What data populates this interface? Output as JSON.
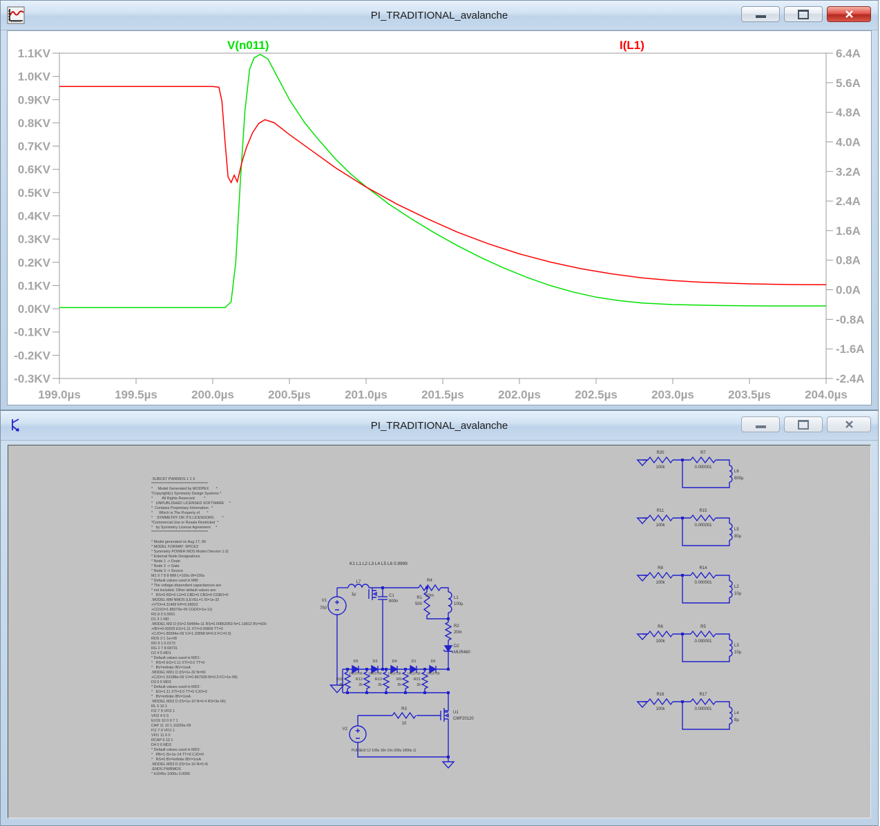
{
  "plot_window": {
    "title": "PI_TRADITIONAL_avalanche"
  },
  "schematic_window": {
    "title": "PI_TRADITIONAL_avalanche"
  },
  "colors": {
    "trace_green": "#00e100",
    "trace_red": "#ff0000",
    "wire_blue": "#2121cc",
    "canvas_grey": "#c2c2c2",
    "axis_text": "#a4a4a4",
    "frame_grey": "#9a9a9a"
  },
  "chart_data": {
    "type": "line",
    "title": "",
    "grid": false,
    "legend_position": "top-inside",
    "x_axis": {
      "unit": "µs",
      "lim": [
        199.0,
        204.0
      ],
      "ticks": [
        [
          199.0,
          "199.0µs"
        ],
        [
          199.5,
          "199.5µs"
        ],
        [
          200.0,
          "200.0µs"
        ],
        [
          200.5,
          "200.5µs"
        ],
        [
          201.0,
          "201.0µs"
        ],
        [
          201.5,
          "201.5µs"
        ],
        [
          202.0,
          "202.0µs"
        ],
        [
          202.5,
          "202.5µs"
        ],
        [
          203.0,
          "203.0µs"
        ],
        [
          203.5,
          "203.5µs"
        ],
        [
          204.0,
          "204.0µs"
        ]
      ]
    },
    "left_axis": {
      "unit": "KV",
      "lim": [
        -0.3,
        1.1
      ],
      "ticks": [
        [
          1.1,
          "1.1KV"
        ],
        [
          1.0,
          "1.0KV"
        ],
        [
          0.9,
          "0.9KV"
        ],
        [
          0.8,
          "0.8KV"
        ],
        [
          0.7,
          "0.7KV"
        ],
        [
          0.6,
          "0.6KV"
        ],
        [
          0.5,
          "0.5KV"
        ],
        [
          0.4,
          "0.4KV"
        ],
        [
          0.3,
          "0.3KV"
        ],
        [
          0.2,
          "0.2KV"
        ],
        [
          0.1,
          "0.1KV"
        ],
        [
          0.0,
          "0.0KV"
        ],
        [
          -0.1,
          "-0.1KV"
        ],
        [
          -0.2,
          "-0.2KV"
        ],
        [
          -0.3,
          "-0.3KV"
        ]
      ]
    },
    "right_axis": {
      "unit": "A",
      "lim": [
        -2.4,
        6.4
      ],
      "ticks": [
        [
          6.4,
          "6.4A"
        ],
        [
          5.6,
          "5.6A"
        ],
        [
          4.8,
          "4.8A"
        ],
        [
          4.0,
          "4.0A"
        ],
        [
          3.2,
          "3.2A"
        ],
        [
          2.4,
          "2.4A"
        ],
        [
          1.6,
          "1.6A"
        ],
        [
          0.8,
          "0.8A"
        ],
        [
          0.0,
          "0.0A"
        ],
        [
          -0.8,
          "-0.8A"
        ],
        [
          -1.6,
          "-1.6A"
        ],
        [
          -2.4,
          "-2.4A"
        ]
      ]
    },
    "series": [
      {
        "name": "V(n011)",
        "color": "#00e100",
        "axis": "left",
        "points": [
          [
            199.0,
            0.005
          ],
          [
            199.5,
            0.005
          ],
          [
            200.0,
            0.005
          ],
          [
            200.08,
            0.005
          ],
          [
            200.12,
            0.03
          ],
          [
            200.15,
            0.2
          ],
          [
            200.18,
            0.55
          ],
          [
            200.21,
            0.85
          ],
          [
            200.24,
            1.03
          ],
          [
            200.27,
            1.08
          ],
          [
            200.31,
            1.095
          ],
          [
            200.36,
            1.075
          ],
          [
            200.42,
            1.0
          ],
          [
            200.5,
            0.9
          ],
          [
            200.6,
            0.8
          ],
          [
            200.7,
            0.72
          ],
          [
            200.8,
            0.645
          ],
          [
            200.9,
            0.58
          ],
          [
            201.0,
            0.525
          ],
          [
            201.15,
            0.45
          ],
          [
            201.3,
            0.385
          ],
          [
            201.45,
            0.325
          ],
          [
            201.6,
            0.27
          ],
          [
            201.75,
            0.22
          ],
          [
            201.9,
            0.175
          ],
          [
            202.05,
            0.135
          ],
          [
            202.2,
            0.1
          ],
          [
            202.35,
            0.072
          ],
          [
            202.5,
            0.05
          ],
          [
            202.65,
            0.035
          ],
          [
            202.8,
            0.025
          ],
          [
            203.0,
            0.018
          ],
          [
            203.3,
            0.014
          ],
          [
            203.6,
            0.012
          ],
          [
            204.05,
            0.012
          ]
        ]
      },
      {
        "name": "I(L1)",
        "color": "#ff0000",
        "axis": "right",
        "points": [
          [
            199.0,
            5.5
          ],
          [
            199.5,
            5.5
          ],
          [
            200.0,
            5.5
          ],
          [
            200.04,
            5.48
          ],
          [
            200.06,
            5.1
          ],
          [
            200.08,
            4.0
          ],
          [
            200.1,
            3.05
          ],
          [
            200.12,
            2.9
          ],
          [
            200.14,
            3.1
          ],
          [
            200.16,
            2.92
          ],
          [
            200.19,
            3.45
          ],
          [
            200.22,
            3.85
          ],
          [
            200.26,
            4.25
          ],
          [
            200.3,
            4.5
          ],
          [
            200.34,
            4.6
          ],
          [
            200.4,
            4.52
          ],
          [
            200.5,
            4.2
          ],
          [
            200.65,
            3.75
          ],
          [
            200.8,
            3.3
          ],
          [
            201.0,
            2.78
          ],
          [
            201.2,
            2.32
          ],
          [
            201.4,
            1.92
          ],
          [
            201.6,
            1.55
          ],
          [
            201.8,
            1.24
          ],
          [
            202.0,
            0.97
          ],
          [
            202.2,
            0.75
          ],
          [
            202.4,
            0.57
          ],
          [
            202.6,
            0.43
          ],
          [
            202.8,
            0.32
          ],
          [
            203.0,
            0.25
          ],
          [
            203.2,
            0.2
          ],
          [
            203.5,
            0.16
          ],
          [
            203.8,
            0.14
          ],
          [
            204.05,
            0.135
          ]
        ]
      }
    ]
  },
  "schematic": {
    "directive": "K1 L1 L2 L3 L4 L5 L6 0.9999",
    "netlist_lines": [
      ".SUBCKT PWRMOS 1 2 3",
      "***************************************",
      "*     Model Generated by MODPEX       *",
      "*Copyright(c) Symmetry Design Systems *",
      "*         All Rights Reserved         *",
      "*   UNPUBLISHED LICENSED SOFTWARE     *",
      "*  Contains Proprietary Information   *",
      "*      Which is The Property of       *",
      "*    SYMMETRY OR ITS LICENSORS        *",
      "*Commercial Use or Resale Restricted  *",
      "*   by Symmetry License Agreement     *",
      "***************************************",
      "",
      "* Model generated on Aug 17, 99",
      "* MODEL FORMAT: SPICE3",
      "* Symmetry POWER MOS Model (Version 1.0)",
      "* External Node Designations",
      "* Node 1 -> Drain",
      "* Node 2 -> Gate",
      "* Node 3 -> Source",
      "M1 9 7 8 8 MM L=100u W=100u",
      "* Default values used in MM:",
      "* The voltage-dependent capacitances are",
      "* not included. Other default values are:",
      "*   RS=0 RD=0 LD=0 CBD=0 CBS=0 CGBO=0",
      ".MODEL MM NMOS (LEVEL=1 IS=1e-32",
      "+VTO=4.11469 KP=5.68922",
      "+CGSO=1.86079e-06 CGDO=1e-11)",
      "RS 8 3 0.0001",
      "D1 3 1 MD",
      ".MODEL MD D (IS=2.59484e-11 RS=0.00862953 N=1.10812 BV=600",
      "+IBV=0.00025 EG=1.11 XTI=3.00809 TT=0",
      "+CJO=1.89394e-09 VJ=1.33898 M=0.9 FC=0.5)",
      "RDS 3 1 1e+08",
      "RD 9 1 0.0173",
      "RG 2 7 8.68731",
      "D2 4 5 MD1",
      "* Default values used in MD1:",
      "*   RS=0 EG=1.11 XTI=3.0 TT=0",
      "*   BV=infinite IBV=1mA",
      ".MODEL MD1 D (IS=1e-32 N=50",
      "+CJO=1.53188e-09 VJ=0.867939 M=0.3 FC=1e-08)",
      "D3 0 5 MD2",
      "* Default values used in MD2:",
      "*   EG=1.11 XTI=3.0 TT=0 CJO=0",
      "*   BV=infinite IBV=1mA",
      ".MODEL MD2 D (IS=1e-10 N=0.4 RS=3e-06)",
      "RL 5 10 1",
      "FI2 7 9 VFI2 1",
      "VFI2 4 0 0",
      "EV16 10 0 9 7 1",
      "CAP 11 10 1.10226e-09",
      "FI1 7 9 VFI1 1",
      "VFI1 11 6 0",
      "RCAP 6 10 1",
      "D4 0 6 MD3",
      "* Default values used in MD3:",
      "*   PB=1 IS=1e-14 TT=0 CJO=0",
      "*   RS=0 BV=infinite IBV=1mA",
      ".MODEL MD3 D (IS=1e-10 N=0.4)",
      ".ENDS PWRMOS",
      "* b1545u 1000u 0.0005"
    ],
    "main": {
      "v1": "V1",
      "v1_value": "750",
      "l7": "L7",
      "l7_value": "1µ",
      "c1": "C1",
      "c1_value": "800n",
      "r1": "R1",
      "r1_value": "500",
      "r4": "R4",
      "r4_value": "20m",
      "l1": "L1",
      "l1_value": "100µ",
      "r2": "R2",
      "r2_value": "20m",
      "d2": "D2",
      "d2_value": "MUR460",
      "r3": "R3",
      "r3_value": "10",
      "u1": "U1",
      "u1_value": "CMF20120",
      "v2": "V2",
      "v2_value": "PULSE(0 12 100u 10n 10n 200u 1000u 1)"
    },
    "clamp_diodes": {
      "names": [
        "D5",
        "D3",
        "D4",
        "D1",
        "D6"
      ],
      "value": "1N5370B"
    },
    "clamp_resistors": {
      "names": [
        "R10",
        "R12",
        "R13",
        "R9",
        "R21"
      ],
      "value": "2k"
    },
    "right_blocks": [
      {
        "r1": "R20",
        "r1v": "100k",
        "r2": "R7",
        "r2v": "0.000001",
        "l": "L6",
        "lv": "800µ"
      },
      {
        "r1": "R11",
        "r1v": "100k",
        "r2": "R15",
        "r2v": "0.000001",
        "l": "L5",
        "lv": "80µ"
      },
      {
        "r1": "R8",
        "r1v": "100k",
        "r2": "R14",
        "r2v": "0.000001",
        "l": "L2",
        "lv": "10µ"
      },
      {
        "r1": "R6",
        "r1v": "100k",
        "r2": "R5",
        "r2v": "0.000001",
        "l": "L3",
        "lv": "10µ"
      },
      {
        "r1": "R16",
        "r1v": "100k",
        "r2": "R17",
        "r2v": "0.000001",
        "l": "L4",
        "lv": "8µ"
      }
    ]
  }
}
